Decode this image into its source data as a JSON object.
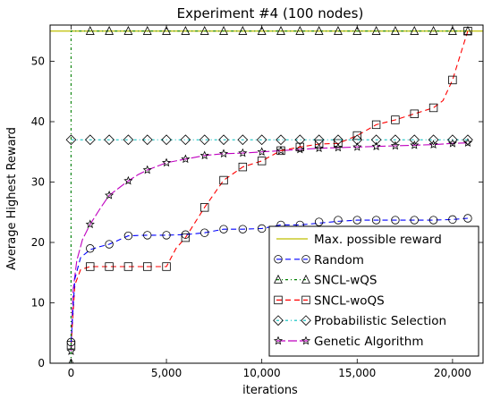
{
  "chart_data": {
    "type": "line",
    "title": "Experiment #4 (100 nodes)",
    "xlabel": "iterations",
    "ylabel": "Average Highest Reward",
    "xlim": [
      -1100,
      21600
    ],
    "ylim": [
      0,
      56
    ],
    "x_ticks": [
      0,
      5000,
      10000,
      15000,
      20000
    ],
    "x_tick_labels": [
      "0",
      "5,000",
      "10,000",
      "15,000",
      "20,000"
    ],
    "y_ticks": [
      0,
      10,
      20,
      30,
      40,
      50
    ],
    "y_tick_labels": [
      "0",
      "10",
      "20",
      "30",
      "40",
      "50"
    ],
    "grid": false,
    "legend_position": "lower-right",
    "series": [
      {
        "name": "Max. possible reward",
        "color": "#bfbf00",
        "dash": "solid",
        "marker": "none",
        "x": [
          -1100,
          21600
        ],
        "y": [
          55,
          55
        ]
      },
      {
        "name": "Random",
        "color": "#0000ff",
        "dash": "dash",
        "marker": "circle",
        "x": [
          0,
          200,
          500,
          1000,
          1500,
          2000,
          3000,
          4000,
          5000,
          6000,
          7000,
          8000,
          9000,
          10000,
          11000,
          12000,
          13000,
          14000,
          15000,
          16000,
          17000,
          18000,
          19000,
          20000,
          20800
        ],
        "y": [
          3.5,
          14,
          17.5,
          18.8,
          19.3,
          19.7,
          21.1,
          21.2,
          21.2,
          21.3,
          21.6,
          22.2,
          22.2,
          22.3,
          22.9,
          22.9,
          23.2,
          23.5,
          23.7,
          23.7,
          23.7,
          23.7,
          23.7,
          23.8,
          24
        ],
        "markers": [
          [
            0,
            3.5
          ],
          [
            1000,
            19
          ],
          [
            2000,
            19.7
          ],
          [
            3000,
            21.1
          ],
          [
            4000,
            21.2
          ],
          [
            5000,
            21.2
          ],
          [
            6000,
            21.3
          ],
          [
            7000,
            21.6
          ],
          [
            8000,
            22.2
          ],
          [
            9000,
            22.2
          ],
          [
            10000,
            22.3
          ],
          [
            11000,
            22.9
          ],
          [
            12000,
            22.9
          ],
          [
            13000,
            23.4
          ],
          [
            14000,
            23.7
          ],
          [
            15000,
            23.7
          ],
          [
            16000,
            23.7
          ],
          [
            17000,
            23.7
          ],
          [
            18000,
            23.7
          ],
          [
            19000,
            23.7
          ],
          [
            20000,
            23.8
          ],
          [
            20800,
            24
          ]
        ]
      },
      {
        "name": "SNCL-wQS",
        "color": "#008000",
        "dash": "dashdot",
        "marker": "triangle",
        "x": [
          0,
          0,
          20800
        ],
        "y": [
          0,
          55,
          55
        ],
        "markers": [
          [
            0,
            0
          ],
          [
            1000,
            55
          ],
          [
            2000,
            55
          ],
          [
            3000,
            55
          ],
          [
            4000,
            55
          ],
          [
            5000,
            55
          ],
          [
            6000,
            55
          ],
          [
            7000,
            55
          ],
          [
            8000,
            55
          ],
          [
            9000,
            55
          ],
          [
            10000,
            55
          ],
          [
            11000,
            55
          ],
          [
            12000,
            55
          ],
          [
            13000,
            55
          ],
          [
            14000,
            55
          ],
          [
            15000,
            55
          ],
          [
            16000,
            55
          ],
          [
            17000,
            55
          ],
          [
            18000,
            55
          ],
          [
            19000,
            55
          ],
          [
            20000,
            55
          ],
          [
            20800,
            55
          ]
        ]
      },
      {
        "name": "SNCL-woQS",
        "color": "#ff0000",
        "dash": "dash",
        "marker": "square",
        "x": [
          0,
          200,
          500,
          1000,
          2000,
          3000,
          4000,
          5000,
          5500,
          6000,
          7000,
          8000,
          9000,
          10000,
          11000,
          12000,
          13000,
          14000,
          15000,
          16000,
          17000,
          18000,
          19000,
          19500,
          20000,
          20500,
          20800
        ],
        "y": [
          3,
          13,
          15.5,
          16,
          16,
          16,
          16,
          16,
          19,
          20.8,
          25.8,
          30.3,
          32.5,
          33.5,
          35.2,
          35.8,
          36.3,
          36.4,
          37.7,
          39.5,
          40.3,
          41.3,
          42.3,
          43.5,
          46.9,
          52,
          55
        ],
        "markers": [
          [
            0,
            3
          ],
          [
            1000,
            16
          ],
          [
            2000,
            16
          ],
          [
            3000,
            16
          ],
          [
            4000,
            16
          ],
          [
            5000,
            16
          ],
          [
            6000,
            20.8
          ],
          [
            7000,
            25.8
          ],
          [
            8000,
            30.3
          ],
          [
            9000,
            32.5
          ],
          [
            10000,
            33.5
          ],
          [
            11000,
            35.2
          ],
          [
            12000,
            35.8
          ],
          [
            13000,
            36.3
          ],
          [
            14000,
            36.4
          ],
          [
            15000,
            37.7
          ],
          [
            16000,
            39.5
          ],
          [
            17000,
            40.3
          ],
          [
            18000,
            41.3
          ],
          [
            19000,
            42.3
          ],
          [
            20000,
            46.9
          ],
          [
            20800,
            55
          ]
        ]
      },
      {
        "name": "Probabilistic Selection",
        "color": "#00bfbf",
        "dash": "dashdot",
        "marker": "diamond",
        "x": [
          0,
          0,
          20800
        ],
        "y": [
          0,
          37,
          37
        ],
        "markers": [
          [
            0,
            37
          ],
          [
            1000,
            37
          ],
          [
            2000,
            37
          ],
          [
            3000,
            37
          ],
          [
            4000,
            37
          ],
          [
            5000,
            37
          ],
          [
            6000,
            37
          ],
          [
            7000,
            37
          ],
          [
            8000,
            37
          ],
          [
            9000,
            37
          ],
          [
            10000,
            37
          ],
          [
            11000,
            37
          ],
          [
            12000,
            37
          ],
          [
            13000,
            37
          ],
          [
            14000,
            37
          ],
          [
            15000,
            37
          ],
          [
            16000,
            37
          ],
          [
            17000,
            37
          ],
          [
            18000,
            37
          ],
          [
            19000,
            37
          ],
          [
            20000,
            37
          ],
          [
            20800,
            37
          ]
        ]
      },
      {
        "name": "Genetic Algorithm",
        "color": "#bf00bf",
        "dash": "dashlong",
        "marker": "star",
        "x": [
          0,
          100,
          300,
          600,
          1000,
          1500,
          2000,
          2500,
          3000,
          3500,
          4000,
          4500,
          5000,
          6000,
          7000,
          8000,
          9000,
          10000,
          11000,
          12000,
          13000,
          14000,
          15000,
          16000,
          17000,
          18000,
          19000,
          20000,
          20800
        ],
        "y": [
          2,
          12,
          17,
          20.5,
          23,
          25.5,
          27.8,
          29,
          30.2,
          31.2,
          32,
          32.6,
          33.2,
          33.8,
          34.4,
          34.7,
          34.8,
          35.0,
          35.2,
          35.4,
          35.6,
          35.7,
          35.8,
          35.9,
          36.0,
          36.1,
          36.2,
          36.4,
          36.5
        ],
        "markers": [
          [
            0,
            2
          ],
          [
            1000,
            23
          ],
          [
            2000,
            27.8
          ],
          [
            3000,
            30.2
          ],
          [
            4000,
            32
          ],
          [
            5000,
            33.2
          ],
          [
            6000,
            33.8
          ],
          [
            7000,
            34.4
          ],
          [
            8000,
            34.7
          ],
          [
            9000,
            34.8
          ],
          [
            10000,
            35.0
          ],
          [
            11000,
            35.2
          ],
          [
            12000,
            35.4
          ],
          [
            13000,
            35.6
          ],
          [
            14000,
            35.7
          ],
          [
            15000,
            35.8
          ],
          [
            16000,
            35.9
          ],
          [
            17000,
            36.0
          ],
          [
            18000,
            36.1
          ],
          [
            19000,
            36.2
          ],
          [
            20000,
            36.4
          ],
          [
            20800,
            36.5
          ]
        ]
      }
    ]
  }
}
